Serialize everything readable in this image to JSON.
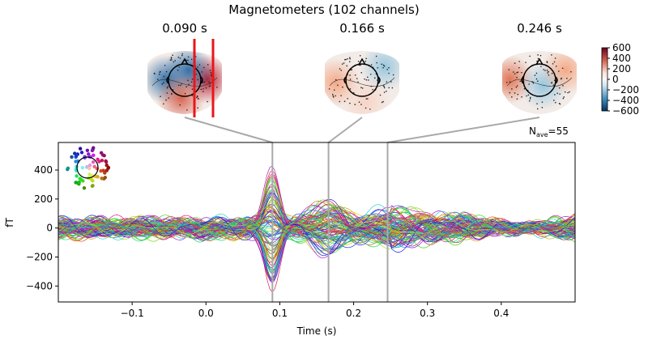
{
  "chart_data": {
    "type": "line",
    "title": "Magnetometers (102 channels)",
    "xlabel": "Time (s)",
    "ylabel": "fT",
    "xlim": [
      -0.2,
      0.5
    ],
    "ylim": [
      -510,
      590
    ],
    "xticks": [
      -0.1,
      0.0,
      0.1,
      0.2,
      0.3,
      0.4
    ],
    "xtick_labels": [
      "−0.1",
      "0.0",
      "0.1",
      "0.2",
      "0.3",
      "0.4"
    ],
    "yticks": [
      -400,
      -200,
      0,
      200,
      400
    ],
    "ytick_labels": [
      "−400",
      "−200",
      "0",
      "200",
      "400"
    ],
    "grid": false,
    "n_channels": 102,
    "annotation": {
      "main": "N",
      "sub": "ave",
      "rest": "=55"
    },
    "peak_times": [
      0.09,
      0.166,
      0.246
    ],
    "peak_labels": [
      "0.090 s",
      "0.166 s",
      "0.246 s"
    ],
    "topomap_colorbar": {
      "ticks": [
        600,
        400,
        200,
        0,
        -200,
        -400,
        -600
      ],
      "tick_labels": [
        "600",
        "400",
        "200",
        "0",
        "−200",
        "−400",
        "−600"
      ]
    }
  },
  "colors": {
    "vline": "#a9a9a9",
    "topo_marker": "#e8161a",
    "axis": "#000000"
  }
}
